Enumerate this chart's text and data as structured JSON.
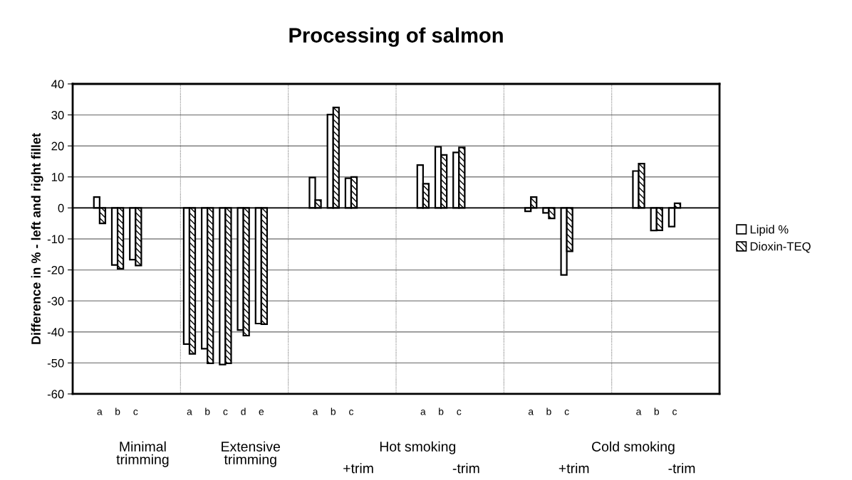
{
  "chart_data": {
    "type": "bar",
    "title": "Processing of salmon",
    "ylabel": "Difference in % - left and right fillet",
    "categories": [
      null,
      "a",
      "b",
      "c",
      null,
      null,
      "a",
      "b",
      "c",
      "d",
      "e",
      null,
      null,
      "a",
      "b",
      "c",
      null,
      null,
      null,
      "a",
      "b",
      "c",
      null,
      null,
      null,
      "a",
      "b",
      "c",
      null,
      null,
      null,
      "a",
      "b",
      "c",
      null,
      null
    ],
    "series": [
      {
        "name": "Lipid %",
        "color": "#ffffff",
        "values": [
          null,
          3.5,
          -18.4,
          -16.7,
          null,
          null,
          -43.9,
          -45.4,
          -50.5,
          -39.4,
          -37.3,
          null,
          null,
          9.8,
          30.1,
          9.6,
          null,
          null,
          null,
          13.8,
          19.7,
          17.9,
          null,
          null,
          null,
          -1.1,
          -1.6,
          -21.6,
          null,
          null,
          null,
          11.9,
          -7.3,
          -6.0,
          null,
          null
        ]
      },
      {
        "name": "Dioxin-TEQ",
        "color": "#000000",
        "values": [
          null,
          -5.0,
          -19.6,
          -18.6,
          null,
          null,
          -47.1,
          -50.1,
          -50.1,
          -41.2,
          -37.5,
          null,
          null,
          2.5,
          32.4,
          10.0,
          null,
          null,
          null,
          7.8,
          17.1,
          19.5,
          null,
          null,
          null,
          3.5,
          -3.4,
          -14.0,
          null,
          null,
          null,
          14.3,
          -7.2,
          1.5,
          null,
          null
        ]
      }
    ],
    "ylim": [
      -60,
      40
    ],
    "yticks": [
      -60,
      -50,
      -40,
      -30,
      -20,
      -10,
      0,
      10,
      20,
      30,
      40
    ],
    "grid": true,
    "legend": "right",
    "annotations": [
      "Minimal\ntrimming",
      "Extensive\ntrimming",
      "Hot smoking",
      "+trim",
      "-trim",
      "Cold smoking",
      "+trim",
      "-trim"
    ]
  }
}
